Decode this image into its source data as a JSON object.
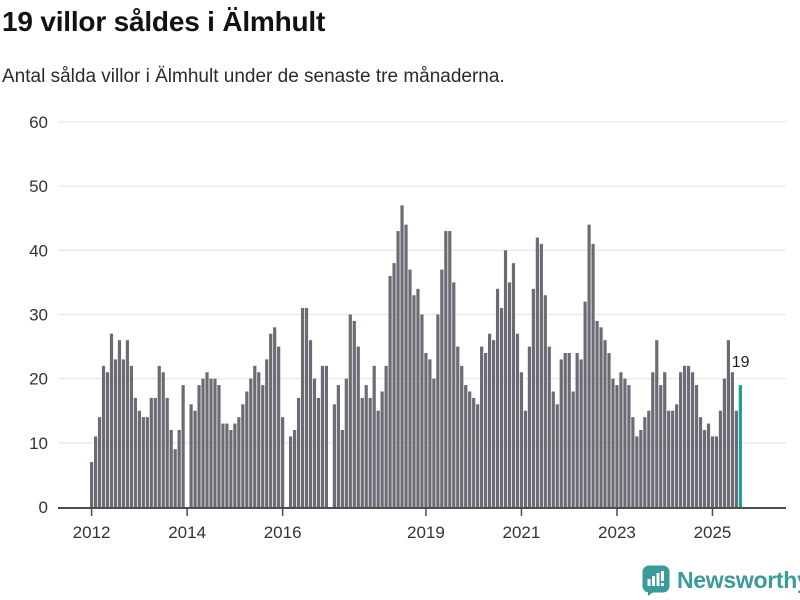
{
  "header": {
    "title": "19 villor såldes i Älmhult",
    "subtitle": "Antal sålda villor i Älmhult under de senaste tre månaderna."
  },
  "logo": {
    "text": "Newsworthy",
    "color": "#3a9b9c"
  },
  "annotation": {
    "last_value_label": "19"
  },
  "colors": {
    "bar": "#6b6b73",
    "highlight": "#1a9e9b",
    "gridline": "#e8e8e8",
    "axis": "#4d4d4d",
    "label": "#333333"
  },
  "chart_data": {
    "type": "bar",
    "title": "19 villor såldes i Älmhult",
    "subtitle": "Antal sålda villor i Älmhult under de senaste tre månaderna.",
    "unit": "sålda villor (rullande 3 månader)",
    "start_year": 2012,
    "start_month": 1,
    "end_year": 2025,
    "end_month": 8,
    "ylim": [
      0,
      60
    ],
    "yticks": [
      0,
      10,
      20,
      30,
      40,
      50,
      60
    ],
    "x_tick_years": [
      2012,
      2014,
      2016,
      2019,
      2021,
      2023,
      2025
    ],
    "grid": "horizontal",
    "legend": "none",
    "highlight_last": true,
    "missing_months": [
      "2014-01",
      "2016-02",
      "2017-01"
    ],
    "values_by_year": {
      "2012": [
        7,
        11,
        14,
        22,
        21,
        27,
        23,
        26,
        23,
        26,
        22,
        17
      ],
      "2013": [
        15,
        14,
        14,
        17,
        17,
        22,
        21,
        17,
        12,
        9,
        12,
        19
      ],
      "2014": [
        null,
        16,
        15,
        19,
        20,
        21,
        20,
        20,
        19,
        13,
        13,
        12
      ],
      "2015": [
        13,
        14,
        16,
        18,
        20,
        22,
        21,
        19,
        23,
        27,
        28,
        25
      ],
      "2016": [
        14,
        null,
        11,
        12,
        17,
        31,
        31,
        26,
        20,
        17,
        22,
        22
      ],
      "2017": [
        null,
        16,
        19,
        12,
        20,
        30,
        29,
        25,
        17,
        19,
        17,
        22
      ],
      "2018": [
        15,
        18,
        22,
        36,
        38,
        43,
        47,
        44,
        37,
        33,
        34,
        30
      ],
      "2019": [
        24,
        23,
        20,
        30,
        37,
        43,
        43,
        35,
        25,
        22,
        19,
        18
      ],
      "2020": [
        17,
        16,
        25,
        24,
        27,
        26,
        34,
        31,
        40,
        35,
        38,
        27
      ],
      "2021": [
        21,
        15,
        25,
        34,
        42,
        41,
        33,
        25,
        18,
        16,
        23,
        24
      ],
      "2022": [
        24,
        18,
        24,
        23,
        32,
        44,
        41,
        29,
        28,
        26,
        24,
        20
      ],
      "2023": [
        19,
        21,
        20,
        19,
        14,
        11,
        12,
        14,
        15,
        21,
        26,
        19
      ],
      "2024": [
        21,
        15,
        15,
        16,
        21,
        22,
        22,
        21,
        19,
        14,
        12,
        13
      ],
      "2025": [
        11,
        11,
        15,
        20,
        26,
        21,
        15,
        19
      ]
    },
    "last_value": 19,
    "last_value_label": "19"
  }
}
